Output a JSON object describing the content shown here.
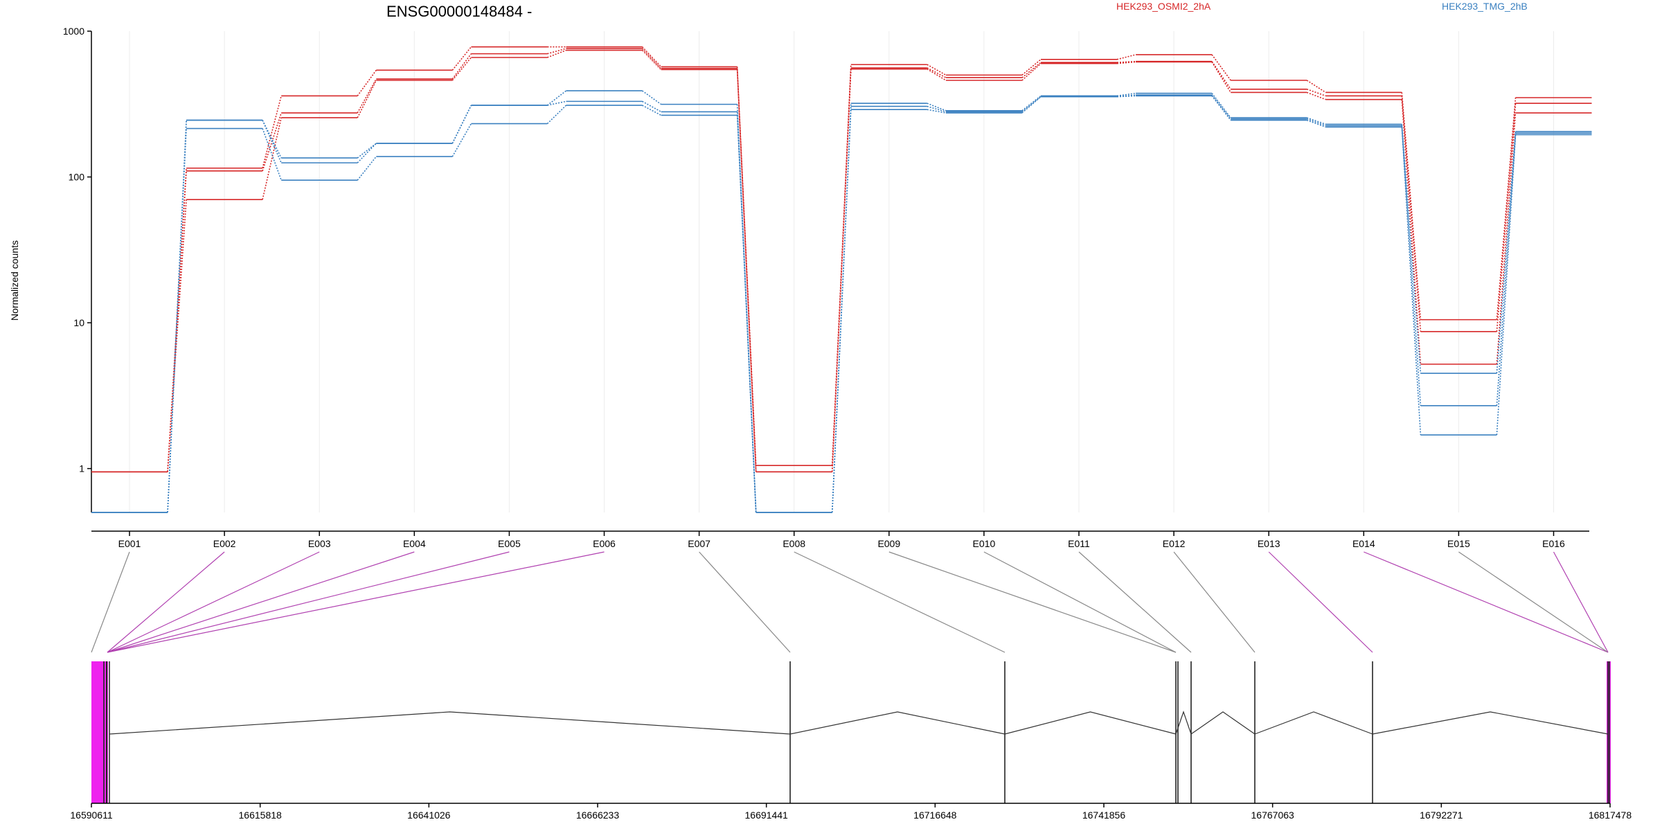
{
  "chart_data": {
    "type": "line",
    "title": "ENSG00000148484 -",
    "ylabel": "Normalized counts",
    "xlabel": "",
    "y_scale": "log",
    "ylim": [
      0.5,
      1000
    ],
    "y_ticks": [
      1,
      10,
      100,
      1000
    ],
    "y_tick_labels": [
      "1",
      "10",
      "100",
      "1000"
    ],
    "categories": [
      "E001",
      "E002",
      "E003",
      "E004",
      "E005",
      "E006",
      "E007",
      "E008",
      "E009",
      "E010",
      "E011",
      "E012",
      "E013",
      "E014",
      "E015",
      "E016"
    ],
    "legend": [
      {
        "name": "HEK293_OSMI2_2hA",
        "color": "#d62728"
      },
      {
        "name": "HEK293_TMG_2hB",
        "color": "#3a80c0"
      }
    ],
    "series": [
      {
        "group": "HEK293_OSMI2_2hA",
        "color": "#d62728",
        "values": [
          0.95,
          115,
          360,
          540,
          780,
          780,
          570,
          1.05,
          590,
          500,
          640,
          690,
          460,
          380,
          10.5,
          350
        ]
      },
      {
        "group": "HEK293_OSMI2_2hA",
        "color": "#d62728",
        "values": [
          0.95,
          110,
          275,
          470,
          700,
          760,
          555,
          0.95,
          560,
          480,
          610,
          620,
          400,
          360,
          8.7,
          320
        ]
      },
      {
        "group": "HEK293_OSMI2_2hA",
        "color": "#d62728",
        "values": [
          0.95,
          70,
          255,
          460,
          660,
          740,
          545,
          0.95,
          550,
          460,
          600,
          615,
          380,
          340,
          5.2,
          275
        ]
      },
      {
        "group": "HEK293_TMG_2hB",
        "color": "#3a80c0",
        "values": [
          0.5,
          245,
          135,
          170,
          310,
          390,
          315,
          0.5,
          320,
          285,
          360,
          375,
          255,
          230,
          4.5,
          205
        ]
      },
      {
        "group": "HEK293_TMG_2hB",
        "color": "#3a80c0",
        "values": [
          0.5,
          245,
          125,
          170,
          310,
          330,
          280,
          0.5,
          305,
          280,
          355,
          365,
          250,
          225,
          2.7,
          200
        ]
      },
      {
        "group": "HEK293_TMG_2hB",
        "color": "#3a80c0",
        "values": [
          0.5,
          215,
          95,
          138,
          232,
          310,
          265,
          0.5,
          290,
          275,
          355,
          360,
          245,
          220,
          1.7,
          195
        ]
      }
    ],
    "genomic_axis": {
      "tick_labels": [
        "16590611",
        "16615818",
        "16641026",
        "16666233",
        "16691441",
        "16716648",
        "16741856",
        "16767063",
        "16792271",
        "16817478"
      ]
    },
    "gene_model": {
      "exon_color": "#ee22ee",
      "line_color": "#333333",
      "connector_colors": {
        "highlight": "#b040b0",
        "normal": "#888888"
      },
      "exon_connectors": [
        {
          "exon": "E001",
          "highlight": false
        },
        {
          "exon": "E002",
          "highlight": true
        },
        {
          "exon": "E003",
          "highlight": true
        },
        {
          "exon": "E004",
          "highlight": true
        },
        {
          "exon": "E005",
          "highlight": true
        },
        {
          "exon": "E006",
          "highlight": true
        },
        {
          "exon": "E007",
          "highlight": false
        },
        {
          "exon": "E008",
          "highlight": false
        },
        {
          "exon": "E009",
          "highlight": false
        },
        {
          "exon": "E010",
          "highlight": false
        },
        {
          "exon": "E011",
          "highlight": false
        },
        {
          "exon": "E012",
          "highlight": false
        },
        {
          "exon": "E013",
          "highlight": true
        },
        {
          "exon": "E014",
          "highlight": true
        },
        {
          "exon": "E015",
          "highlight": false
        },
        {
          "exon": "E016",
          "highlight": true
        }
      ]
    }
  }
}
